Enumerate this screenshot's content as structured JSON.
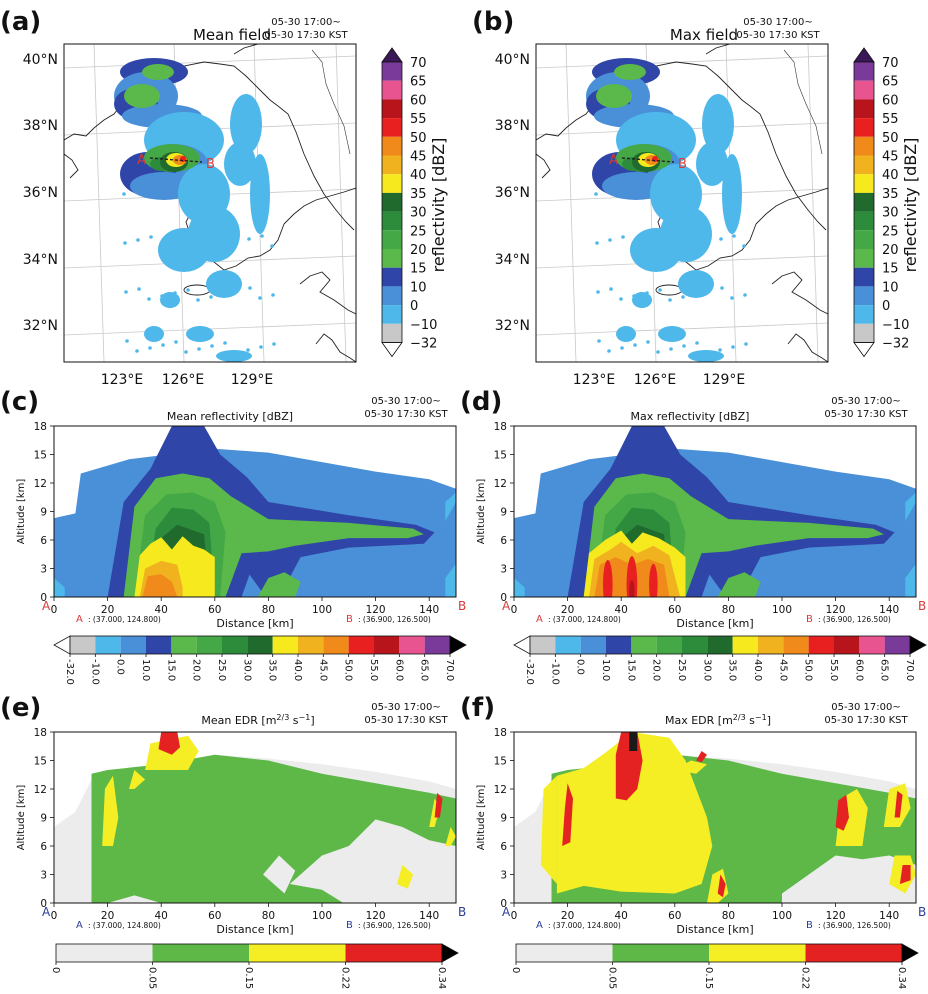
{
  "chart_data": [
    {
      "panel": "(a)",
      "type": "heatmap",
      "title": "Mean field",
      "time_line1": "05-30 17:00~",
      "time_line2": "05-30 17:30 KST",
      "lat_ticks": [
        "40°N",
        "38°N",
        "36°N",
        "34°N",
        "32°N"
      ],
      "lon_ticks": [
        "123°E",
        "126°E",
        "129°E"
      ],
      "colorbar_label": "reflectivity [dBZ]",
      "colorbar_ticks": [
        "70",
        "65",
        "60",
        "55",
        "50",
        "45",
        "40",
        "35",
        "30",
        "25",
        "20",
        "15",
        "10",
        "0",
        "−10",
        "−32"
      ],
      "section_start": "A",
      "section_end": "B"
    },
    {
      "panel": "(b)",
      "type": "heatmap",
      "title": "Max field",
      "time_line1": "05-30 17:00~",
      "time_line2": "05-30 17:30 KST",
      "lat_ticks": [
        "40°N",
        "38°N",
        "36°N",
        "34°N",
        "32°N"
      ],
      "lon_ticks": [
        "123°E",
        "126°E",
        "129°E"
      ],
      "colorbar_label": "reflectivity [dBZ]",
      "colorbar_ticks": [
        "70",
        "65",
        "60",
        "55",
        "50",
        "45",
        "40",
        "35",
        "30",
        "25",
        "20",
        "15",
        "10",
        "0",
        "−10",
        "−32"
      ],
      "section_start": "A",
      "section_end": "B"
    },
    {
      "panel": "(c)",
      "type": "heatmap",
      "title": "Mean  reflectivity [dBZ]",
      "time_line1": "05-30 17:00~",
      "time_line2": "05-30 17:30 KST",
      "xlabel": "Distance [km]",
      "ylabel": "Altitude [km]",
      "xlim": [
        0,
        150
      ],
      "ylim": [
        0,
        18
      ],
      "x_ticks": [
        "0",
        "20",
        "40",
        "60",
        "80",
        "100",
        "120",
        "140"
      ],
      "y_ticks": [
        "0",
        "3",
        "6",
        "9",
        "12",
        "15",
        "18"
      ],
      "point_a_label": "A",
      "point_a_coord": ": (37.000, 124.800)",
      "point_b_label": "B",
      "point_b_coord": ": (36.900, 126.500)",
      "end_a": "A",
      "end_b": "B",
      "colorbar_ticks": [
        "-32.0",
        "-10.0",
        "0.0",
        "10.0",
        "15.0",
        "20.0",
        "25.0",
        "30.0",
        "35.0",
        "40.0",
        "45.0",
        "50.0",
        "55.0",
        "60.0",
        "65.0",
        "70.0"
      ]
    },
    {
      "panel": "(d)",
      "type": "heatmap",
      "title": "Max  reflectivity [dBZ]",
      "time_line1": "05-30 17:00~",
      "time_line2": "05-30 17:30 KST",
      "xlabel": "Distance [km]",
      "ylabel": "Altitude [km]",
      "xlim": [
        0,
        150
      ],
      "ylim": [
        0,
        18
      ],
      "x_ticks": [
        "0",
        "20",
        "40",
        "60",
        "80",
        "100",
        "120",
        "140"
      ],
      "y_ticks": [
        "0",
        "3",
        "6",
        "9",
        "12",
        "15",
        "18"
      ],
      "point_a_label": "A",
      "point_a_coord": ": (37.000, 124.800)",
      "point_b_label": "B",
      "point_b_coord": ": (36.900, 126.500)",
      "end_a": "A",
      "end_b": "B",
      "colorbar_ticks": [
        "-32.0",
        "-10.0",
        "0.0",
        "10.0",
        "15.0",
        "20.0",
        "25.0",
        "30.0",
        "35.0",
        "40.0",
        "45.0",
        "50.0",
        "55.0",
        "60.0",
        "65.0",
        "70.0"
      ]
    },
    {
      "panel": "(e)",
      "type": "heatmap",
      "title": "Mean EDR [m",
      "title_sup1": "2/3",
      "title_mid": " s",
      "title_sup2": "−1",
      "title_end": "]",
      "time_line1": "05-30 17:00~",
      "time_line2": "05-30 17:30 KST",
      "xlabel": "Distance [km]",
      "ylabel": "Altitude [km]",
      "xlim": [
        0,
        150
      ],
      "ylim": [
        0,
        18
      ],
      "x_ticks": [
        "0",
        "20",
        "40",
        "60",
        "80",
        "100",
        "120",
        "140"
      ],
      "y_ticks": [
        "0",
        "3",
        "6",
        "9",
        "12",
        "15",
        "18"
      ],
      "point_a_label": "A",
      "point_a_coord": ": (37.000, 124.800)",
      "point_b_label": "B",
      "point_b_coord": ": (36.900, 126.500)",
      "end_a": "A",
      "end_b": "B",
      "colorbar_ticks": [
        "0",
        "0.05",
        "0.15",
        "0.22",
        "0.34"
      ]
    },
    {
      "panel": "(f)",
      "type": "heatmap",
      "title": "Max EDR [m",
      "title_sup1": "2/3",
      "title_mid": " s",
      "title_sup2": "−1",
      "title_end": "]",
      "time_line1": "05-30 17:00~",
      "time_line2": "05-30 17:30 KST",
      "xlabel": "Distance [km]",
      "ylabel": "Altitude [km]",
      "xlim": [
        0,
        150
      ],
      "ylim": [
        0,
        18
      ],
      "x_ticks": [
        "0",
        "20",
        "40",
        "60",
        "80",
        "100",
        "120",
        "140"
      ],
      "y_ticks": [
        "0",
        "3",
        "6",
        "9",
        "12",
        "15",
        "18"
      ],
      "point_a_label": "A",
      "point_a_coord": ": (37.000, 124.800)",
      "point_b_label": "B",
      "point_b_coord": ": (36.900, 126.500)",
      "end_a": "A",
      "end_b": "B",
      "colorbar_ticks": [
        "0",
        "0.05",
        "0.15",
        "0.22",
        "0.34"
      ]
    }
  ],
  "colors": {
    "dbz": [
      "#c8c8c8",
      "#4fb8ea",
      "#4a90d8",
      "#2f46a8",
      "#5bb84a",
      "#44a846",
      "#2c8c3c",
      "#1f6a2c",
      "#f6ea1e",
      "#f0b21e",
      "#f08a1a",
      "#e82020",
      "#b8141c",
      "#e85490",
      "#7a3a9a"
    ],
    "dbz_map": [
      "#3a1858",
      "#7a3a9a",
      "#e85490",
      "#b8141c",
      "#e82020",
      "#f08a1a",
      "#f0b21e",
      "#f6ea1e",
      "#1f6a2c",
      "#2c8c3c",
      "#44a846",
      "#5bb84a",
      "#2f46a8",
      "#4a90d8",
      "#4fb8ea",
      "#c8c8c8"
    ],
    "edr": [
      "#ececec",
      "#5db848",
      "#f6ee24",
      "#e42222"
    ],
    "label_red": "#d83a3a",
    "label_blue": "#2a3d9a"
  }
}
